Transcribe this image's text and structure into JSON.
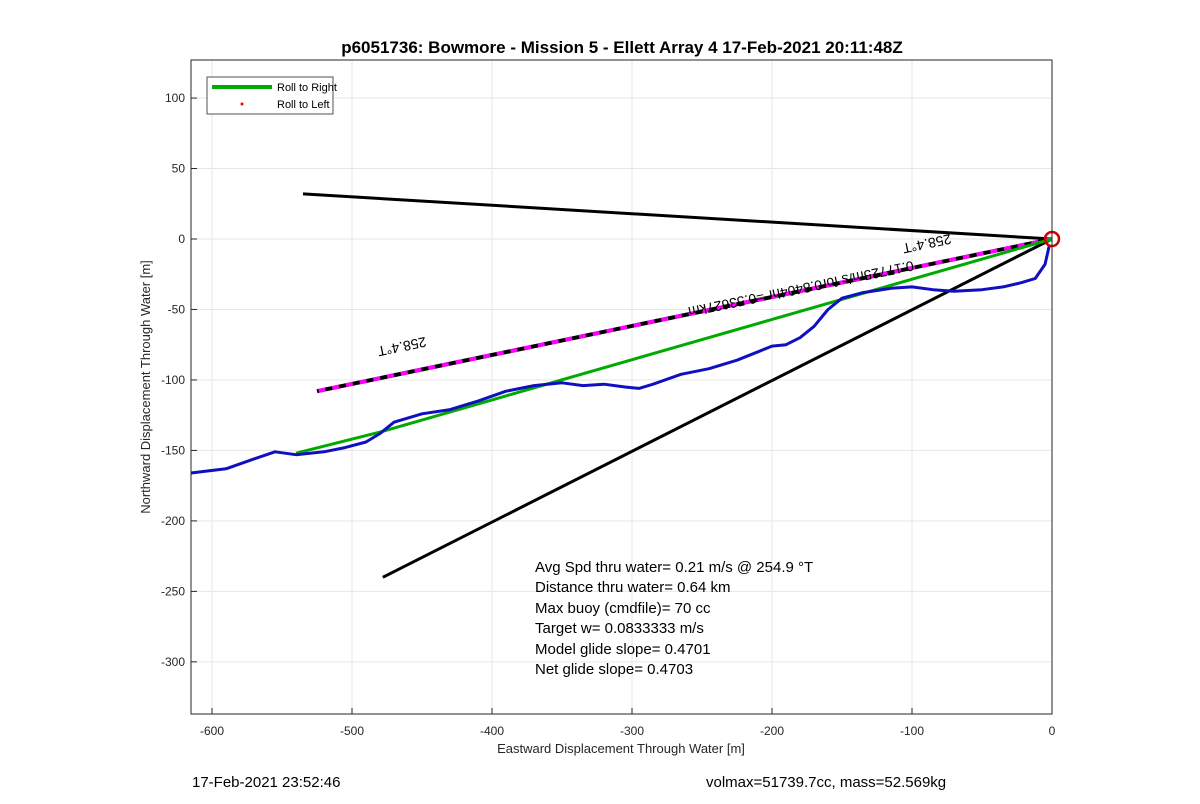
{
  "chart_data": {
    "type": "line",
    "title": "p6051736: Bowmore - Mission 5 - Ellett Array 4 17-Feb-2021 20:11:48Z",
    "xlabel": "Eastward Displacement Through Water [m]",
    "ylabel": "Northward Displacement Through Water [m]",
    "xlim": [
      -615,
      0
    ],
    "ylim": [
      -337,
      127
    ],
    "xticks": [
      -600,
      -500,
      -400,
      -300,
      -200,
      -100,
      0
    ],
    "yticks": [
      100,
      50,
      0,
      -50,
      -100,
      -150,
      -200,
      -250,
      -300
    ],
    "grid": true,
    "legend_position": "top-left",
    "legend": [
      {
        "label": "Roll to Right",
        "color": "#00aa00",
        "style": "line"
      },
      {
        "label": "Roll to Left",
        "color": "#ff0000",
        "style": "dot"
      }
    ],
    "series": [
      {
        "color": "#00aa00",
        "x": [
          0,
          -480,
          -540
        ],
        "y": [
          0,
          -137,
          -152
        ]
      },
      {
        "color": "#1010c0",
        "x": [
          -2,
          -5,
          -12,
          -22,
          -35,
          -50,
          -70,
          -85,
          -100,
          -115,
          -135,
          -150,
          -160,
          -170,
          -180,
          -190,
          -200,
          -210,
          -225,
          -245,
          -265,
          -285,
          -295,
          -305,
          -320,
          -335,
          -350,
          -370,
          -390,
          -410,
          -430,
          -450,
          -470,
          -480,
          -490,
          -505,
          -520,
          -540,
          -555,
          -570,
          -590,
          -615
        ],
        "y": [
          -5,
          -18,
          -28,
          -31,
          -34,
          -36,
          -37,
          -36,
          -34,
          -35,
          -38,
          -42,
          -50,
          -62,
          -70,
          -75,
          -76,
          -80,
          -86,
          -92,
          -96,
          -103,
          -106,
          -105,
          -103,
          -104,
          -102,
          -104,
          -108,
          -115,
          -121,
          -124,
          -130,
          -138,
          -144,
          -148,
          -151,
          -153,
          -151,
          -156,
          -163,
          -166
        ]
      },
      {
        "color": "#000000",
        "x": [
          0,
          -535
        ],
        "y": [
          0,
          32
        ]
      },
      {
        "color": "#000000",
        "x": [
          0,
          -478
        ],
        "y": [
          0,
          -240
        ]
      },
      {
        "color": "#000000",
        "dash_color": "#ff00ff",
        "x": [
          0,
          -525
        ],
        "y": [
          0,
          -108
        ]
      }
    ],
    "target_marker": {
      "x": 0,
      "y": 0,
      "color": "#cc0000"
    },
    "line_labels": [
      {
        "text": "258.4°T",
        "x": -90,
        "y": 0
      },
      {
        "text": "258.4°T",
        "x": -465,
        "y": -73
      },
      {
        "text": "0.17725m/s for0.8404hr =0.53627km",
        "x": -180,
        "y": -32
      }
    ],
    "annotations": [
      "Avg Spd thru water=  0.21 m/s @ 254.9 °T",
      "Distance thru water=  0.64 km",
      "Max buoy (cmdfile)= 70 cc",
      "Target w= 0.0833333 m/s",
      "Model glide slope= 0.4701",
      "Net glide slope= 0.4703"
    ],
    "footer_left": "17-Feb-2021 23:52:46",
    "footer_right": "volmax=51739.7cc, mass=52.569kg"
  }
}
